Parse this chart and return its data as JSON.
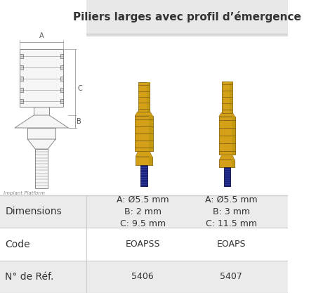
{
  "title": "Piliers larges avec profil d’émergence",
  "title_bg": "#e8e8e8",
  "background": "#ffffff",
  "row_bgs": [
    "#ebebeb",
    "#ffffff",
    "#ebebeb"
  ],
  "table_rows": [
    {
      "label": "Dimensions",
      "col1": "A: Ø5.5 mm\nB: 2 mm\nC: 9.5 mm",
      "col2": "A: Ø5.5 mm\nB: 3 mm\nC: 11.5 mm"
    },
    {
      "label": "Code",
      "col1": "EOAPSS",
      "col2": "EOAPS"
    },
    {
      "label": "N° de Réf.",
      "col1": "5406",
      "col2": "5407"
    }
  ],
  "diagram_label": "Implant Platform",
  "label_fontsize": 10,
  "cell_fontsize": 9,
  "title_fontsize": 11,
  "line_color": "#cccccc",
  "text_color": "#333333",
  "gold": "#D4A017",
  "gold_dark": "#8B6914",
  "gold_mid": "#C49A10",
  "navy": "#1a237e",
  "navy_dark": "#0d0d40",
  "diagram_line": "#888888",
  "diagram_fill": "#f5f5f5"
}
